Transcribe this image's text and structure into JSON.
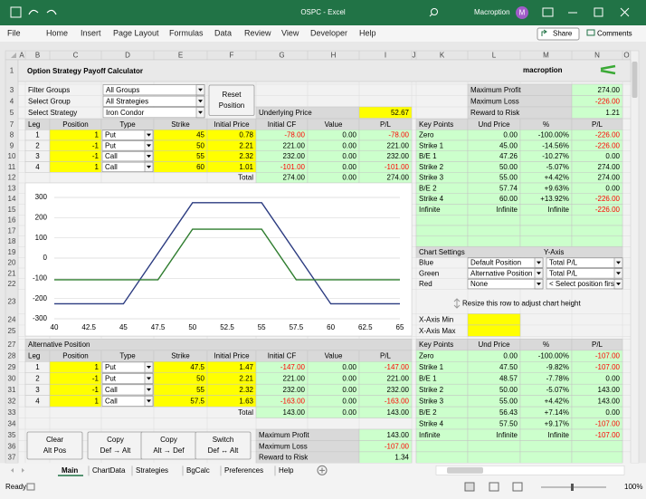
{
  "window": {
    "title": "OSPC - Excel",
    "user": "Macroption",
    "avatar": "M"
  },
  "ribbon": {
    "tabs": [
      "File",
      "Home",
      "Insert",
      "Page Layout",
      "Formulas",
      "Data",
      "Review",
      "View",
      "Developer",
      "Help"
    ],
    "share": "Share",
    "comments": "Comments"
  },
  "grid": {
    "columns": [
      "A",
      "B",
      "C",
      "D",
      "E",
      "F",
      "G",
      "H",
      "I",
      "J",
      "K",
      "L",
      "M",
      "N",
      "O"
    ],
    "rows": [
      "1",
      "3",
      "4",
      "5",
      "7",
      "8",
      "9",
      "10",
      "11",
      "12",
      "13",
      "14",
      "15",
      "16",
      "17",
      "18",
      "19",
      "20",
      "21",
      "22",
      "23",
      "24",
      "25",
      "27",
      "28",
      "29",
      "30",
      "31",
      "32",
      "33",
      "34",
      "35",
      "36",
      "37"
    ]
  },
  "sheet": {
    "title": "Option Strategy Payoff Calculator",
    "logo": "macroption",
    "filters": [
      {
        "label": "Filter Groups",
        "value": "All Groups"
      },
      {
        "label": "Select Group",
        "value": "All Strategies"
      },
      {
        "label": "Select Strategy",
        "value": "Iron Condor"
      }
    ],
    "reset_button": [
      "Reset",
      "Position"
    ],
    "underlying_price": {
      "label": "Underlying Price",
      "value": "52.67"
    },
    "summary": [
      {
        "label": "Maximum Profit",
        "value": "274.00"
      },
      {
        "label": "Maximum Loss",
        "value": "-226.00"
      },
      {
        "label": "Reward to Risk",
        "value": "1.21"
      }
    ],
    "position": {
      "headers": [
        "Leg",
        "Position",
        "Type",
        "Strike",
        "Initial Price",
        "Initial CF",
        "Value",
        "P/L"
      ],
      "rows": [
        [
          "1",
          "1",
          "Put",
          "45",
          "0.78",
          "-78.00",
          "0.00",
          "-78.00"
        ],
        [
          "2",
          "-1",
          "Put",
          "50",
          "2.21",
          "221.00",
          "0.00",
          "221.00"
        ],
        [
          "3",
          "-1",
          "Call",
          "55",
          "2.32",
          "232.00",
          "0.00",
          "232.00"
        ],
        [
          "4",
          "1",
          "Call",
          "60",
          "1.01",
          "-101.00",
          "0.00",
          "-101.00"
        ]
      ],
      "total": {
        "label": "Total",
        "values": [
          "274.00",
          "0.00",
          "274.00"
        ]
      }
    },
    "key_points": {
      "headers": [
        "Key Points",
        "Und Price",
        "%",
        "P/L"
      ],
      "rows": [
        [
          "Zero",
          "0.00",
          "-100.00%",
          "-226.00"
        ],
        [
          "Strike 1",
          "45.00",
          "-14.56%",
          "-226.00"
        ],
        [
          "B/E 1",
          "47.26",
          "-10.27%",
          "0.00"
        ],
        [
          "Strike 2",
          "50.00",
          "-5.07%",
          "274.00"
        ],
        [
          "Strike 3",
          "55.00",
          "+4.42%",
          "274.00"
        ],
        [
          "B/E 2",
          "57.74",
          "+9.63%",
          "0.00"
        ],
        [
          "Strike 4",
          "60.00",
          "+13.92%",
          "-226.00"
        ],
        [
          "Infinite",
          "Infinite",
          "Infinite",
          "-226.00"
        ]
      ]
    },
    "chart_settings": {
      "title": "Chart Settings",
      "y_axis": "Y-Axis",
      "rows": [
        [
          "Blue",
          "Default Position",
          "Total P/L"
        ],
        [
          "Green",
          "Alternative Position",
          "Total P/L"
        ],
        [
          "Red",
          "None",
          "< Select position first"
        ]
      ]
    },
    "resize_note": "Resize this row to adjust chart height",
    "x_axis": [
      "X-Axis Min",
      "X-Axis Max"
    ],
    "alt_position": {
      "title": "Alternative Position",
      "headers": [
        "Leg",
        "Position",
        "Type",
        "Strike",
        "Initial Price",
        "Initial CF",
        "Value",
        "P/L"
      ],
      "rows": [
        [
          "1",
          "1",
          "Put",
          "47.5",
          "1.47",
          "-147.00",
          "0.00",
          "-147.00"
        ],
        [
          "2",
          "-1",
          "Put",
          "50",
          "2.21",
          "221.00",
          "0.00",
          "221.00"
        ],
        [
          "3",
          "-1",
          "Call",
          "55",
          "2.32",
          "232.00",
          "0.00",
          "232.00"
        ],
        [
          "4",
          "1",
          "Call",
          "57.5",
          "1.63",
          "-163.00",
          "0.00",
          "-163.00"
        ]
      ],
      "total": {
        "label": "Total",
        "values": [
          "143.00",
          "0.00",
          "143.00"
        ]
      }
    },
    "alt_key_points": {
      "headers": [
        "Key Points",
        "Und Price",
        "%",
        "P/L"
      ],
      "rows": [
        [
          "Zero",
          "0.00",
          "-100.00%",
          "-107.00"
        ],
        [
          "Strike 1",
          "47.50",
          "-9.82%",
          "-107.00"
        ],
        [
          "B/E 1",
          "48.57",
          "-7.78%",
          "0.00"
        ],
        [
          "Strike 2",
          "50.00",
          "-5.07%",
          "143.00"
        ],
        [
          "Strike 3",
          "55.00",
          "+4.42%",
          "143.00"
        ],
        [
          "B/E 2",
          "56.43",
          "+7.14%",
          "0.00"
        ],
        [
          "Strike 4",
          "57.50",
          "+9.17%",
          "-107.00"
        ],
        [
          "Infinite",
          "Infinite",
          "Infinite",
          "-107.00"
        ]
      ]
    },
    "buttons": [
      [
        "Clear",
        "Alt Pos"
      ],
      [
        "Copy",
        "Def → Alt"
      ],
      [
        "Copy",
        "Alt → Def"
      ],
      [
        "Switch",
        "Def ↔ Alt"
      ]
    ],
    "alt_summary": [
      {
        "label": "Maximum Profit",
        "value": "143.00"
      },
      {
        "label": "Maximum Loss",
        "value": "-107.00"
      },
      {
        "label": "Reward to Risk",
        "value": "1.34"
      }
    ]
  },
  "sheet_tabs": [
    "Main",
    "ChartData",
    "Strategies",
    "BgCalc",
    "Preferences",
    "Help"
  ],
  "status": {
    "ready": "Ready",
    "zoom": "100%"
  },
  "chart_data": {
    "type": "line",
    "xlim": [
      40,
      65
    ],
    "xticks": [
      40,
      42.5,
      45,
      47.5,
      50,
      52.5,
      55,
      57.5,
      60,
      62.5,
      65
    ],
    "ylim": [
      -300,
      300
    ],
    "yticks": [
      -300,
      -200,
      -100,
      0,
      100,
      200,
      300
    ],
    "grid": true,
    "series": [
      {
        "color": "#2b3b80",
        "x": [
          40,
          45,
          50,
          55,
          60,
          65
        ],
        "values": [
          -226,
          -226,
          274,
          274,
          -226,
          -226
        ]
      },
      {
        "color": "#2f7d2f",
        "x": [
          40,
          47.5,
          50,
          55,
          57.5,
          65
        ],
        "values": [
          -107,
          -107,
          143,
          143,
          -107,
          -107
        ]
      }
    ]
  }
}
